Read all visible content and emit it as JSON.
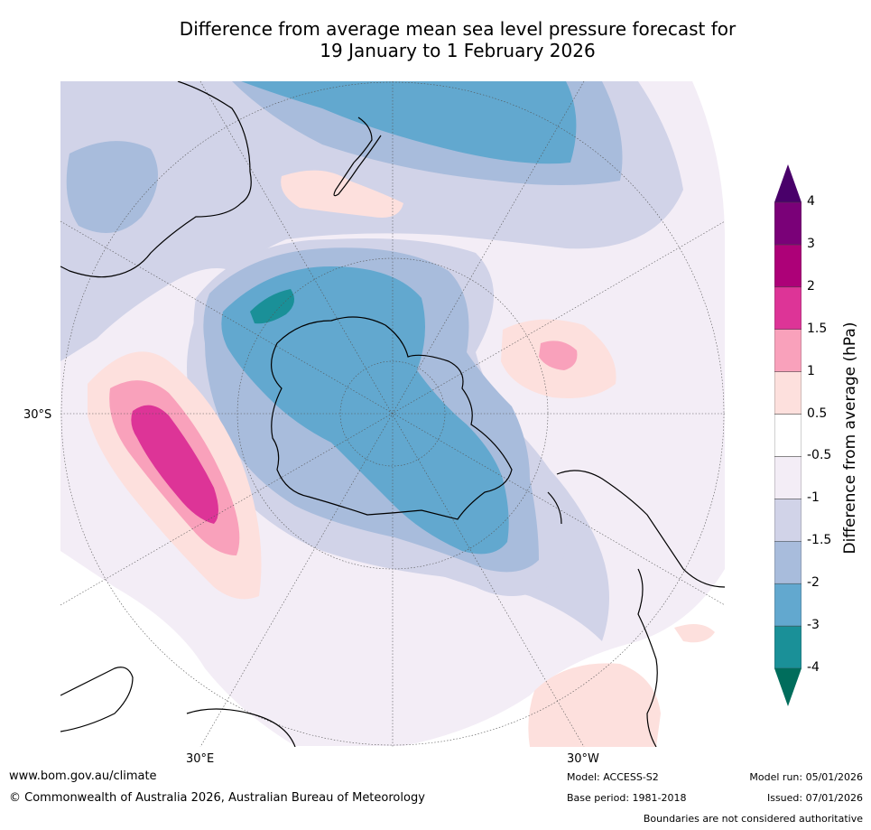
{
  "title": {
    "line1": "Difference from average mean sea level pressure forecast for",
    "line2": "19 January to 1 February 2026"
  },
  "map": {
    "projection": "south-polar-stereographic",
    "labels": {
      "lat_left": "30°S",
      "lon_bottom_left": "30°E",
      "lon_bottom_right": "30°W"
    },
    "colors": {
      "ocean": "#ffffff",
      "coast": "#000000",
      "graticule": "#555555"
    }
  },
  "colorbar": {
    "title": "Difference from average (hPa)",
    "ticks": [
      "-4",
      "-3",
      "-2",
      "-1.5",
      "-1",
      "-0.5",
      "0.5",
      "1",
      "1.5",
      "2",
      "3",
      "4"
    ],
    "bins": [
      {
        "color": "#006d5c"
      },
      {
        "color": "#1a9098"
      },
      {
        "color": "#62a8cf"
      },
      {
        "color": "#a8bcdc"
      },
      {
        "color": "#d1d3e8"
      },
      {
        "color": "#f3edf6"
      },
      {
        "color": "#ffffff"
      },
      {
        "color": "#fde0dd"
      },
      {
        "color": "#f9a1bb"
      },
      {
        "color": "#dd3497"
      },
      {
        "color": "#ad0178"
      },
      {
        "color": "#7a0178"
      },
      {
        "color": "#49006a"
      }
    ]
  },
  "footer": {
    "website": "www.bom.gov.au/climate",
    "copyright": "© Commonwealth of Australia 2026, Australian Bureau of Meteorology",
    "model": "Model: ACCESS-S2",
    "base_period": "Base period: 1981-2018",
    "model_run": "Model run: 05/01/2026",
    "issued": "Issued: 07/01/2026",
    "disclaimer": "Boundaries are not considered authoritative"
  }
}
